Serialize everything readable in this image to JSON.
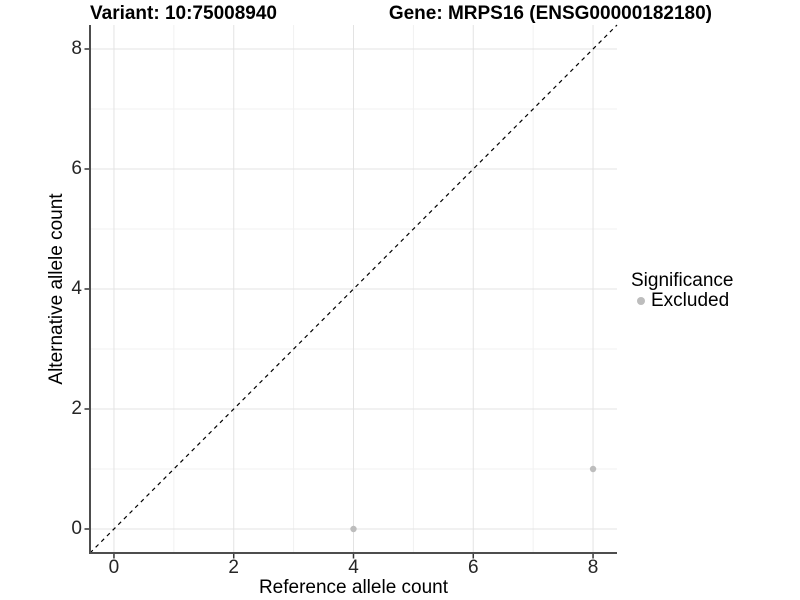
{
  "chart_data": {
    "type": "scatter",
    "title_variant": "Variant: 10:75008940",
    "title_gene": "Gene: MRPS16 (ENSG00000182180)",
    "xlabel": "Reference allele count",
    "ylabel": "Alternative allele count",
    "xlim": [
      -0.4,
      8.4
    ],
    "ylim": [
      -0.4,
      8.4
    ],
    "xticks": [
      0,
      2,
      4,
      6,
      8
    ],
    "yticks": [
      0,
      2,
      4,
      6,
      8
    ],
    "xminor": [
      1,
      3,
      5,
      7
    ],
    "yminor": [
      1,
      3,
      5,
      7
    ],
    "grid": "major and minor gridlines on white panel, no top/right border",
    "legend": {
      "position": "right",
      "title": "Significance",
      "items": [
        {
          "label": "Excluded",
          "color": "#bdbdbd"
        }
      ]
    },
    "series": [
      {
        "name": "Excluded",
        "color": "#bdbdbd",
        "points": [
          {
            "x": 4,
            "y": 0
          },
          {
            "x": 8,
            "y": 1
          }
        ]
      }
    ],
    "identity_line": {
      "slope": 1,
      "intercept": 0,
      "style": "dashed",
      "color": "#000000"
    }
  },
  "colors": {
    "background": "#ffffff",
    "grid_major": "#e3e3e3",
    "grid_minor": "#f1f1f1",
    "axis_line": "#4d4d4d",
    "tick_mark": "#333333",
    "tick_text": "#262626",
    "point": "#bdbdbd",
    "identity_line": "#000000"
  }
}
